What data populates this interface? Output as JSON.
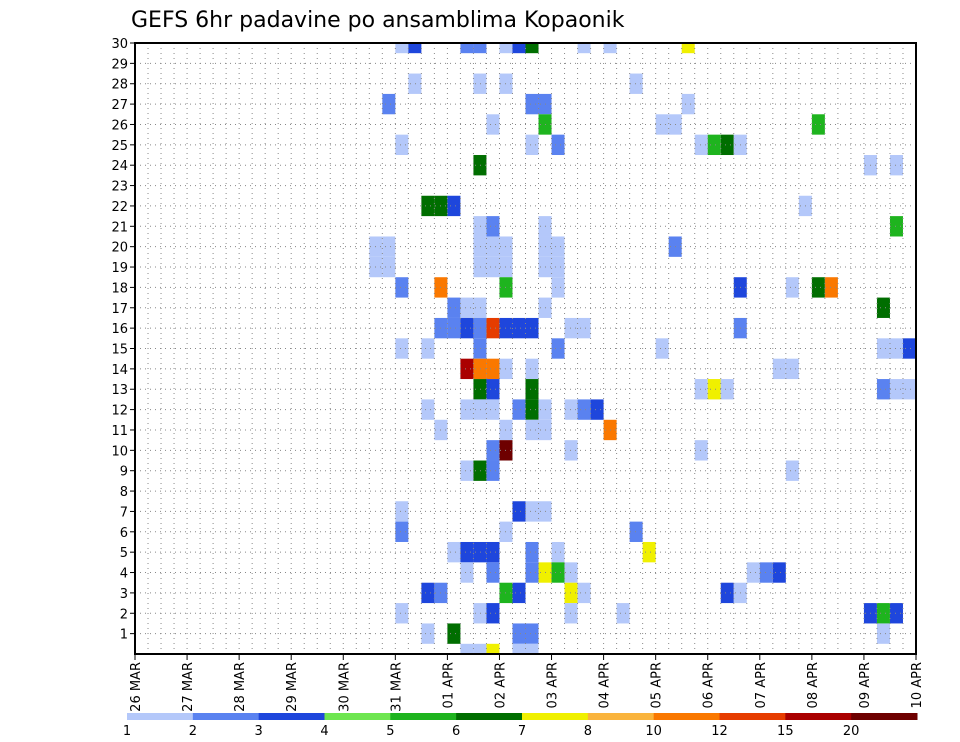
{
  "chart_data": {
    "type": "heatmap",
    "title": "GEFS 6hr padavine po ansamblima Kopaonik",
    "xlabel": "",
    "ylabel": "",
    "x_unit": "days since 26 MAR",
    "x_range": [
      0,
      15
    ],
    "y_range": [
      0,
      30
    ],
    "x_ticks": [
      {
        "value": 0,
        "label": "26 MAR"
      },
      {
        "value": 1,
        "label": "27 MAR"
      },
      {
        "value": 2,
        "label": "28 MAR"
      },
      {
        "value": 3,
        "label": "29 MAR"
      },
      {
        "value": 4,
        "label": "30 MAR"
      },
      {
        "value": 5,
        "label": "31 MAR"
      },
      {
        "value": 6,
        "label": "01 APR"
      },
      {
        "value": 7,
        "label": "02 APR"
      },
      {
        "value": 8,
        "label": "03 APR"
      },
      {
        "value": 9,
        "label": "04 APR"
      },
      {
        "value": 10,
        "label": "05 APR"
      },
      {
        "value": 11,
        "label": "06 APR"
      },
      {
        "value": 12,
        "label": "07 APR"
      },
      {
        "value": 13,
        "label": "08 APR"
      },
      {
        "value": 14,
        "label": "09 APR"
      },
      {
        "value": 15,
        "label": "10 APR"
      }
    ],
    "y_ticks": [
      1,
      2,
      3,
      4,
      5,
      6,
      7,
      8,
      9,
      10,
      11,
      12,
      13,
      14,
      15,
      16,
      17,
      18,
      19,
      20,
      21,
      22,
      23,
      24,
      25,
      26,
      27,
      28,
      29,
      30
    ],
    "grid": true,
    "colorbar": {
      "placement": "bottom",
      "labels": [
        "1",
        "2",
        "3",
        "4",
        "5",
        "6",
        "7",
        "8",
        "10",
        "12",
        "15",
        "20"
      ],
      "colors": [
        "#b4c8fa",
        "#5a82f0",
        "#1e46dc",
        "#6ee650",
        "#1eb41e",
        "#006e00",
        "#f0f000",
        "#fab43c",
        "#fa7800",
        "#e63c00",
        "#aa0000",
        "#6e0000"
      ]
    },
    "cells": [
      {
        "x": 5.0,
        "y": 30,
        "v": 1
      },
      {
        "x": 5.25,
        "y": 30,
        "v": 3
      },
      {
        "x": 6.25,
        "y": 30,
        "v": 2
      },
      {
        "x": 6.5,
        "y": 30,
        "v": 2
      },
      {
        "x": 7.0,
        "y": 30,
        "v": 1
      },
      {
        "x": 7.25,
        "y": 30,
        "v": 3
      },
      {
        "x": 7.5,
        "y": 30,
        "v": 6
      },
      {
        "x": 8.5,
        "y": 30,
        "v": 1
      },
      {
        "x": 9.0,
        "y": 30,
        "v": 1
      },
      {
        "x": 10.5,
        "y": 30,
        "v": 7
      },
      {
        "x": 5.25,
        "y": 28,
        "v": 1
      },
      {
        "x": 6.5,
        "y": 28,
        "v": 1
      },
      {
        "x": 7.0,
        "y": 28,
        "v": 1
      },
      {
        "x": 9.5,
        "y": 28,
        "v": 1
      },
      {
        "x": 4.75,
        "y": 27,
        "v": 2
      },
      {
        "x": 7.5,
        "y": 27,
        "v": 2
      },
      {
        "x": 7.75,
        "y": 27,
        "v": 2
      },
      {
        "x": 10.5,
        "y": 27,
        "v": 1
      },
      {
        "x": 6.75,
        "y": 26,
        "v": 1
      },
      {
        "x": 7.75,
        "y": 26,
        "v": 5
      },
      {
        "x": 10.0,
        "y": 26,
        "v": 1
      },
      {
        "x": 10.25,
        "y": 26,
        "v": 1
      },
      {
        "x": 13.0,
        "y": 26,
        "v": 5
      },
      {
        "x": 5.0,
        "y": 25,
        "v": 1
      },
      {
        "x": 7.5,
        "y": 25,
        "v": 1
      },
      {
        "x": 8.0,
        "y": 25,
        "v": 2
      },
      {
        "x": 10.75,
        "y": 25,
        "v": 1
      },
      {
        "x": 11.0,
        "y": 25,
        "v": 5
      },
      {
        "x": 11.25,
        "y": 25,
        "v": 6
      },
      {
        "x": 11.5,
        "y": 25,
        "v": 1
      },
      {
        "x": 6.5,
        "y": 24,
        "v": 6
      },
      {
        "x": 14.0,
        "y": 24,
        "v": 1
      },
      {
        "x": 14.5,
        "y": 24,
        "v": 1
      },
      {
        "x": 5.5,
        "y": 22,
        "v": 6
      },
      {
        "x": 5.75,
        "y": 22,
        "v": 6
      },
      {
        "x": 6.0,
        "y": 22,
        "v": 3
      },
      {
        "x": 12.75,
        "y": 22,
        "v": 1
      },
      {
        "x": 6.5,
        "y": 21,
        "v": 1
      },
      {
        "x": 6.75,
        "y": 21,
        "v": 2
      },
      {
        "x": 7.75,
        "y": 21,
        "v": 1
      },
      {
        "x": 14.5,
        "y": 21,
        "v": 5
      },
      {
        "x": 4.5,
        "y": 20,
        "v": 1
      },
      {
        "x": 4.75,
        "y": 20,
        "v": 1
      },
      {
        "x": 6.5,
        "y": 20,
        "v": 1
      },
      {
        "x": 6.75,
        "y": 20,
        "v": 1
      },
      {
        "x": 7.0,
        "y": 20,
        "v": 1
      },
      {
        "x": 7.75,
        "y": 20,
        "v": 1
      },
      {
        "x": 8.0,
        "y": 20,
        "v": 1
      },
      {
        "x": 10.25,
        "y": 20,
        "v": 2
      },
      {
        "x": 4.5,
        "y": 19,
        "v": 1
      },
      {
        "x": 4.75,
        "y": 19,
        "v": 1
      },
      {
        "x": 6.5,
        "y": 19,
        "v": 1
      },
      {
        "x": 6.75,
        "y": 19,
        "v": 1
      },
      {
        "x": 7.0,
        "y": 19,
        "v": 1
      },
      {
        "x": 7.75,
        "y": 19,
        "v": 1
      },
      {
        "x": 8.0,
        "y": 19,
        "v": 1
      },
      {
        "x": 5.0,
        "y": 18,
        "v": 2
      },
      {
        "x": 5.75,
        "y": 18,
        "v": 10
      },
      {
        "x": 7.0,
        "y": 18,
        "v": 5
      },
      {
        "x": 8.0,
        "y": 18,
        "v": 1
      },
      {
        "x": 11.5,
        "y": 18,
        "v": 3
      },
      {
        "x": 12.5,
        "y": 18,
        "v": 1
      },
      {
        "x": 13.0,
        "y": 18,
        "v": 6
      },
      {
        "x": 13.25,
        "y": 18,
        "v": 10
      },
      {
        "x": 6.0,
        "y": 17,
        "v": 2
      },
      {
        "x": 6.25,
        "y": 17,
        "v": 1
      },
      {
        "x": 6.5,
        "y": 17,
        "v": 1
      },
      {
        "x": 7.75,
        "y": 17,
        "v": 1
      },
      {
        "x": 14.25,
        "y": 17,
        "v": 6
      },
      {
        "x": 5.75,
        "y": 16,
        "v": 2
      },
      {
        "x": 6.0,
        "y": 16,
        "v": 2
      },
      {
        "x": 6.25,
        "y": 16,
        "v": 3
      },
      {
        "x": 6.5,
        "y": 16,
        "v": 2
      },
      {
        "x": 6.75,
        "y": 16,
        "v": 12
      },
      {
        "x": 7.0,
        "y": 16,
        "v": 3
      },
      {
        "x": 7.25,
        "y": 16,
        "v": 3
      },
      {
        "x": 7.5,
        "y": 16,
        "v": 3
      },
      {
        "x": 8.25,
        "y": 16,
        "v": 1
      },
      {
        "x": 8.5,
        "y": 16,
        "v": 1
      },
      {
        "x": 11.5,
        "y": 16,
        "v": 2
      },
      {
        "x": 5.0,
        "y": 15,
        "v": 1
      },
      {
        "x": 5.5,
        "y": 15,
        "v": 1
      },
      {
        "x": 6.5,
        "y": 15,
        "v": 2
      },
      {
        "x": 8.0,
        "y": 15,
        "v": 2
      },
      {
        "x": 10.0,
        "y": 15,
        "v": 1
      },
      {
        "x": 14.25,
        "y": 15,
        "v": 1
      },
      {
        "x": 14.5,
        "y": 15,
        "v": 1
      },
      {
        "x": 14.75,
        "y": 15,
        "v": 3
      },
      {
        "x": 6.25,
        "y": 14,
        "v": 15
      },
      {
        "x": 6.5,
        "y": 14,
        "v": 10
      },
      {
        "x": 6.75,
        "y": 14,
        "v": 10
      },
      {
        "x": 7.0,
        "y": 14,
        "v": 1
      },
      {
        "x": 7.5,
        "y": 14,
        "v": 1
      },
      {
        "x": 12.25,
        "y": 14,
        "v": 1
      },
      {
        "x": 12.5,
        "y": 14,
        "v": 1
      },
      {
        "x": 6.5,
        "y": 13,
        "v": 6
      },
      {
        "x": 6.75,
        "y": 13,
        "v": 3
      },
      {
        "x": 7.5,
        "y": 13,
        "v": 6
      },
      {
        "x": 10.75,
        "y": 13,
        "v": 1
      },
      {
        "x": 11.0,
        "y": 13,
        "v": 7
      },
      {
        "x": 11.25,
        "y": 13,
        "v": 1
      },
      {
        "x": 14.25,
        "y": 13,
        "v": 2
      },
      {
        "x": 14.5,
        "y": 13,
        "v": 1
      },
      {
        "x": 14.75,
        "y": 13,
        "v": 1
      },
      {
        "x": 5.5,
        "y": 12,
        "v": 1
      },
      {
        "x": 6.25,
        "y": 12,
        "v": 1
      },
      {
        "x": 6.5,
        "y": 12,
        "v": 1
      },
      {
        "x": 6.75,
        "y": 12,
        "v": 1
      },
      {
        "x": 7.25,
        "y": 12,
        "v": 2
      },
      {
        "x": 7.5,
        "y": 12,
        "v": 6
      },
      {
        "x": 7.75,
        "y": 12,
        "v": 1
      },
      {
        "x": 8.25,
        "y": 12,
        "v": 1
      },
      {
        "x": 8.5,
        "y": 12,
        "v": 2
      },
      {
        "x": 8.75,
        "y": 12,
        "v": 3
      },
      {
        "x": 5.75,
        "y": 11,
        "v": 1
      },
      {
        "x": 7.0,
        "y": 11,
        "v": 1
      },
      {
        "x": 7.5,
        "y": 11,
        "v": 1
      },
      {
        "x": 7.75,
        "y": 11,
        "v": 1
      },
      {
        "x": 9.0,
        "y": 11,
        "v": 10
      },
      {
        "x": 6.75,
        "y": 10,
        "v": 2
      },
      {
        "x": 7.0,
        "y": 10,
        "v": 20
      },
      {
        "x": 8.25,
        "y": 10,
        "v": 1
      },
      {
        "x": 10.75,
        "y": 10,
        "v": 1
      },
      {
        "x": 6.25,
        "y": 9,
        "v": 1
      },
      {
        "x": 6.5,
        "y": 9,
        "v": 6
      },
      {
        "x": 6.75,
        "y": 9,
        "v": 2
      },
      {
        "x": 12.5,
        "y": 9,
        "v": 1
      },
      {
        "x": 5.0,
        "y": 7,
        "v": 1
      },
      {
        "x": 7.25,
        "y": 7,
        "v": 3
      },
      {
        "x": 7.5,
        "y": 7,
        "v": 1
      },
      {
        "x": 7.75,
        "y": 7,
        "v": 1
      },
      {
        "x": 5.0,
        "y": 6,
        "v": 2
      },
      {
        "x": 7.0,
        "y": 6,
        "v": 1
      },
      {
        "x": 9.5,
        "y": 6,
        "v": 2
      },
      {
        "x": 6.0,
        "y": 5,
        "v": 1
      },
      {
        "x": 6.25,
        "y": 5,
        "v": 3
      },
      {
        "x": 6.5,
        "y": 5,
        "v": 3
      },
      {
        "x": 6.75,
        "y": 5,
        "v": 3
      },
      {
        "x": 7.5,
        "y": 5,
        "v": 2
      },
      {
        "x": 8.0,
        "y": 5,
        "v": 1
      },
      {
        "x": 9.75,
        "y": 5,
        "v": 7
      },
      {
        "x": 6.25,
        "y": 4,
        "v": 1
      },
      {
        "x": 6.75,
        "y": 4,
        "v": 2
      },
      {
        "x": 7.5,
        "y": 4,
        "v": 2
      },
      {
        "x": 7.75,
        "y": 4,
        "v": 7
      },
      {
        "x": 8.0,
        "y": 4,
        "v": 5
      },
      {
        "x": 8.25,
        "y": 4,
        "v": 1
      },
      {
        "x": 11.75,
        "y": 4,
        "v": 1
      },
      {
        "x": 12.0,
        "y": 4,
        "v": 2
      },
      {
        "x": 12.25,
        "y": 4,
        "v": 3
      },
      {
        "x": 5.5,
        "y": 3,
        "v": 3
      },
      {
        "x": 5.75,
        "y": 3,
        "v": 2
      },
      {
        "x": 7.0,
        "y": 3,
        "v": 5
      },
      {
        "x": 7.25,
        "y": 3,
        "v": 3
      },
      {
        "x": 8.25,
        "y": 3,
        "v": 7
      },
      {
        "x": 8.5,
        "y": 3,
        "v": 1
      },
      {
        "x": 11.25,
        "y": 3,
        "v": 3
      },
      {
        "x": 11.5,
        "y": 3,
        "v": 1
      },
      {
        "x": 5.0,
        "y": 2,
        "v": 1
      },
      {
        "x": 6.5,
        "y": 2,
        "v": 1
      },
      {
        "x": 6.75,
        "y": 2,
        "v": 3
      },
      {
        "x": 8.25,
        "y": 2,
        "v": 1
      },
      {
        "x": 9.25,
        "y": 2,
        "v": 1
      },
      {
        "x": 14.0,
        "y": 2,
        "v": 3
      },
      {
        "x": 14.25,
        "y": 2,
        "v": 5
      },
      {
        "x": 14.5,
        "y": 2,
        "v": 3
      },
      {
        "x": 5.5,
        "y": 1,
        "v": 1
      },
      {
        "x": 6.0,
        "y": 1,
        "v": 6
      },
      {
        "x": 7.25,
        "y": 1,
        "v": 2
      },
      {
        "x": 7.5,
        "y": 1,
        "v": 2
      },
      {
        "x": 14.25,
        "y": 1,
        "v": 1
      },
      {
        "x": 6.25,
        "y": 0,
        "v": 1
      },
      {
        "x": 6.5,
        "y": 0,
        "v": 1
      },
      {
        "x": 6.75,
        "y": 0,
        "v": 7
      },
      {
        "x": 7.25,
        "y": 0,
        "v": 1
      },
      {
        "x": 7.5,
        "y": 0,
        "v": 1
      }
    ]
  }
}
